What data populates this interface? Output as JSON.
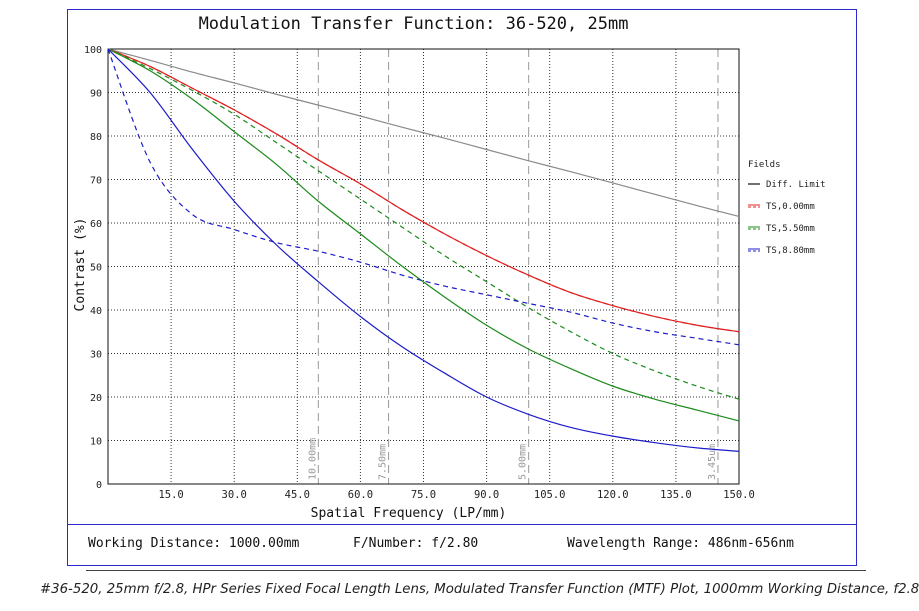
{
  "chart_data": {
    "type": "line",
    "title": "Modulation Transfer Function: 36-520, 25mm",
    "xlabel": "Spatial Frequency (LP/mm)",
    "ylabel": "Contrast (%)",
    "xlim": [
      0,
      150
    ],
    "ylim": [
      0,
      100
    ],
    "x_ticks": [
      "15.0",
      "30.0",
      "45.0",
      "60.0",
      "75.0",
      "90.0",
      "105.0",
      "120.0",
      "135.0",
      "150.0"
    ],
    "y_ticks": [
      "0",
      "10",
      "20",
      "30",
      "40",
      "50",
      "60",
      "70",
      "80",
      "90",
      "100"
    ],
    "grid": true,
    "legend_title": "Fields",
    "legend_position": "right",
    "x": [
      0,
      10,
      20,
      30,
      40,
      50,
      60,
      70,
      80,
      90,
      100,
      110,
      120,
      130,
      140,
      150
    ],
    "series": [
      {
        "name": "Diff. Limit",
        "color": "#8a8a8a",
        "dash": false,
        "values": [
          100,
          97.4,
          94.7,
          92.2,
          89.6,
          87.1,
          84.6,
          82.0,
          79.5,
          76.9,
          74.3,
          71.8,
          69.2,
          66.6,
          64.0,
          61.5
        ]
      },
      {
        "name": "TS,0.00mm",
        "color": "#e02020",
        "dash": false,
        "values": [
          100,
          96,
          91,
          86,
          80.5,
          74.5,
          69,
          63,
          57.5,
          52.5,
          48,
          44,
          41,
          38.5,
          36.5,
          35
        ]
      },
      {
        "name": "TS,0.00mm",
        "color": "#e02020",
        "dash": true,
        "values": [
          100,
          96,
          91,
          86,
          80.5,
          74.5,
          69,
          63,
          57.5,
          52.5,
          48,
          44,
          41,
          38.5,
          36.5,
          35
        ]
      },
      {
        "name": "TS,5.50mm",
        "color": "#1a8a1a",
        "dash": false,
        "values": [
          100,
          95,
          88.5,
          81,
          73.5,
          65,
          57.5,
          50,
          43,
          36.5,
          31,
          26.5,
          22.5,
          19.5,
          17,
          14.5
        ]
      },
      {
        "name": "TS,5.50mm",
        "color": "#1a8a1a",
        "dash": true,
        "values": [
          100,
          95.5,
          90.5,
          85,
          78.5,
          72,
          65.5,
          59,
          52.5,
          46.5,
          40.5,
          35,
          30,
          26,
          22.5,
          19.5
        ]
      },
      {
        "name": "TS,8.80mm",
        "color": "#1c1cc8",
        "dash": false,
        "values": [
          100,
          90,
          77,
          65,
          55,
          46.5,
          38.5,
          31.5,
          25.5,
          20,
          16,
          13,
          11,
          9.5,
          8.3,
          7.5
        ]
      },
      {
        "name": "TS,8.80mm",
        "color": "#1c1cc8",
        "dash": true,
        "values": [
          100,
          74,
          62,
          58.5,
          55.5,
          53.5,
          51,
          48,
          45.5,
          43.5,
          41.5,
          39.5,
          37,
          35,
          33.5,
          32
        ]
      }
    ],
    "legend": [
      {
        "label": "Diff. Limit",
        "color": "#222222",
        "dual": false
      },
      {
        "label": "TS,0.00mm",
        "color": "#e02020",
        "dual": true
      },
      {
        "label": "TS,5.50mm",
        "color": "#1a8a1a",
        "dual": true
      },
      {
        "label": "TS,8.80mm",
        "color": "#1c1cc8",
        "dual": true
      }
    ],
    "annotations": [
      {
        "text": "10.00mm",
        "x": 50
      },
      {
        "text": "7.50mm",
        "x": 66.7
      },
      {
        "text": "5.00mm",
        "x": 100
      },
      {
        "text": "3.45um",
        "x": 145
      }
    ]
  },
  "footer": {
    "working_distance": "Working Distance: 1000.00mm",
    "f_number": "F/Number: f/2.80",
    "wavelength": "Wavelength Range: 486nm-656nm"
  },
  "caption": "#36-520, 25mm f/2.8, HPr Series Fixed Focal Length Lens, Modulated Transfer Function (MTF) Plot, 1000mm Working Distance, f2.8"
}
